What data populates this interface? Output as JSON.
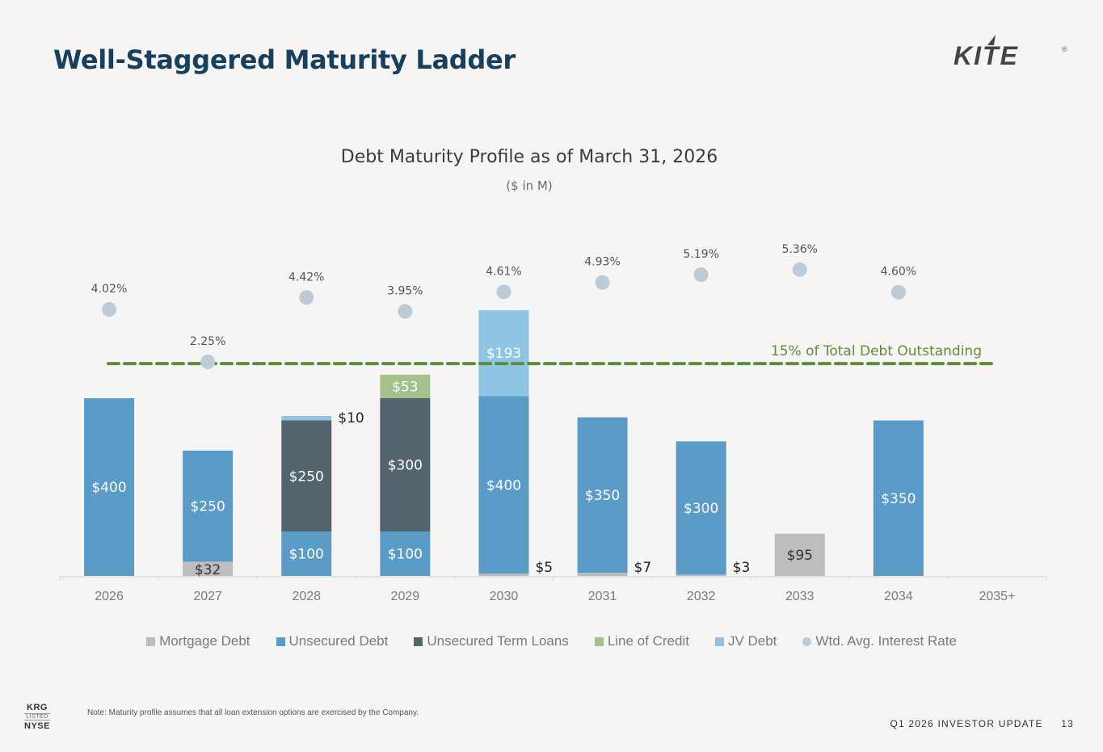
{
  "header": {
    "title": "Well-Staggered Maturity Ladder",
    "logo_text": "KITE",
    "logo_mark": "®"
  },
  "colors": {
    "background": "#f6f5f3",
    "title": "#17405f",
    "mortgage": "#bdbdbd",
    "unsecured": "#5b9bc8",
    "term_loans": "#53646c",
    "line_of_credit": "#a4c18c",
    "jv_debt": "#8ec4e4",
    "rate_dot": "#bccbd8",
    "threshold_line": "#5a8e3a"
  },
  "chart_data": {
    "type": "bar",
    "stacked": true,
    "title": "Debt Maturity Profile as of March 31, 2026",
    "subtitle": "($ in M)",
    "xlabel": "",
    "ylabel": "",
    "categories": [
      "2026",
      "2027",
      "2028",
      "2029",
      "2030",
      "2031",
      "2032",
      "2033",
      "2034",
      "2035+"
    ],
    "series": [
      {
        "name": "Mortgage Debt",
        "key": "mortgage",
        "values": [
          0,
          32,
          0,
          0,
          5,
          7,
          3,
          95,
          0,
          0
        ]
      },
      {
        "name": "Unsecured Debt",
        "key": "unsecured",
        "values": [
          400,
          250,
          100,
          100,
          400,
          350,
          300,
          0,
          350,
          0
        ]
      },
      {
        "name": "Unsecured Term Loans",
        "key": "term_loans",
        "values": [
          0,
          0,
          250,
          300,
          0,
          0,
          0,
          0,
          0,
          0
        ]
      },
      {
        "name": "Line of Credit",
        "key": "line_of_credit",
        "values": [
          0,
          0,
          0,
          53,
          0,
          0,
          0,
          0,
          0,
          0
        ]
      },
      {
        "name": "JV Debt",
        "key": "jv_debt",
        "values": [
          0,
          0,
          10,
          0,
          193,
          0,
          0,
          0,
          0,
          0
        ]
      }
    ],
    "rate_series": {
      "name": "Wtd. Avg. Interest Rate",
      "values": [
        4.02,
        2.25,
        4.42,
        3.95,
        4.61,
        4.93,
        5.19,
        5.36,
        4.6,
        null
      ],
      "labels": [
        "4.02%",
        "2.25%",
        "4.42%",
        "3.95%",
        "4.61%",
        "4.93%",
        "5.19%",
        "5.36%",
        "4.60%",
        ""
      ]
    },
    "bar_labels": [
      {
        "category": "2026",
        "series": "unsecured",
        "text": "$400",
        "position": "inside"
      },
      {
        "category": "2027",
        "series": "mortgage",
        "text": "$32",
        "position": "inside"
      },
      {
        "category": "2027",
        "series": "unsecured",
        "text": "$250",
        "position": "inside"
      },
      {
        "category": "2028",
        "series": "unsecured",
        "text": "$100",
        "position": "inside"
      },
      {
        "category": "2028",
        "series": "term_loans",
        "text": "$250",
        "position": "inside"
      },
      {
        "category": "2028",
        "series": "jv_debt",
        "text": "$10",
        "position": "right"
      },
      {
        "category": "2029",
        "series": "unsecured",
        "text": "$100",
        "position": "inside"
      },
      {
        "category": "2029",
        "series": "term_loans",
        "text": "$300",
        "position": "inside"
      },
      {
        "category": "2029",
        "series": "line_of_credit",
        "text": "$53",
        "position": "inside"
      },
      {
        "category": "2030",
        "series": "mortgage",
        "text": "$5",
        "position": "right"
      },
      {
        "category": "2030",
        "series": "unsecured",
        "text": "$400",
        "position": "inside"
      },
      {
        "category": "2030",
        "series": "jv_debt",
        "text": "$193",
        "position": "inside"
      },
      {
        "category": "2031",
        "series": "mortgage",
        "text": "$7",
        "position": "right"
      },
      {
        "category": "2031",
        "series": "unsecured",
        "text": "$350",
        "position": "inside"
      },
      {
        "category": "2032",
        "series": "mortgage",
        "text": "$3",
        "position": "right"
      },
      {
        "category": "2032",
        "series": "unsecured",
        "text": "$300",
        "position": "inside"
      },
      {
        "category": "2033",
        "series": "mortgage",
        "text": "$95",
        "position": "inside"
      },
      {
        "category": "2034",
        "series": "unsecured",
        "text": "$350",
        "position": "inside"
      }
    ],
    "reference_line": {
      "label": "15% of Total Debt Outstanding",
      "value": 478,
      "style": "dashed"
    },
    "ylim": [
      0,
      640
    ],
    "rate_ylim": [
      0,
      6.5
    ],
    "grid": false,
    "legend": {
      "placement": "bottom",
      "entries": [
        "Mortgage Debt",
        "Unsecured Debt",
        "Unsecured Term Loans",
        "Line of Credit",
        "JV Debt",
        "Wtd. Avg. Interest Rate"
      ]
    }
  },
  "footer": {
    "note": "Note: Maturity profile assumes that all loan extension options are exercised by the Company.",
    "ticker": "KRG",
    "listed": "LISTED",
    "exchange": "NYSE",
    "deck": "Q1 2026 INVESTOR UPDATE",
    "page": "13"
  }
}
